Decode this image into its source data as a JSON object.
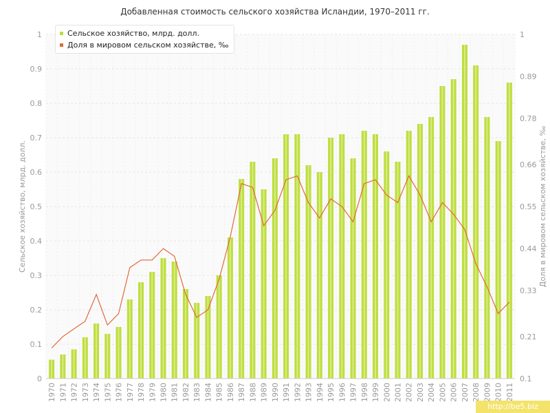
{
  "title": "Добавленная стоимость сельского хозяйства Исландии, 1970–2011 гг.",
  "watermark": "http://be5.biz",
  "colors": {
    "bar": "#bede3e",
    "bar_stripe": "#d8ec86",
    "line": "#e0683a",
    "grid": "#e6e6e6",
    "axis_text": "#999999"
  },
  "chart_data": {
    "type": "bar",
    "categories": [
      "1970",
      "1971",
      "1972",
      "1973",
      "1974",
      "1975",
      "1976",
      "1977",
      "1978",
      "1979",
      "1980",
      "1981",
      "1982",
      "1983",
      "1984",
      "1985",
      "1986",
      "1987",
      "1988",
      "1989",
      "1990",
      "1991",
      "1992",
      "1993",
      "1994",
      "1995",
      "1996",
      "1997",
      "1998",
      "1999",
      "2000",
      "2001",
      "2002",
      "2003",
      "2004",
      "2005",
      "2006",
      "2007",
      "2008",
      "2009",
      "2010",
      "2011"
    ],
    "series": [
      {
        "name": "Сельское хозяйство, млрд. долл.",
        "type": "bar",
        "axis": "left",
        "values": [
          0.055,
          0.07,
          0.085,
          0.12,
          0.16,
          0.13,
          0.15,
          0.23,
          0.28,
          0.31,
          0.35,
          0.34,
          0.26,
          0.22,
          0.24,
          0.3,
          0.41,
          0.58,
          0.63,
          0.55,
          0.64,
          0.71,
          0.71,
          0.62,
          0.6,
          0.7,
          0.71,
          0.64,
          0.72,
          0.71,
          0.66,
          0.63,
          0.72,
          0.74,
          0.76,
          0.85,
          0.87,
          0.97,
          0.91,
          0.76,
          0.69,
          0.86
        ]
      },
      {
        "name": "Доля в мировом сельском хозяйстве, ‰",
        "type": "line",
        "axis": "right",
        "values": [
          0.18,
          0.21,
          0.23,
          0.25,
          0.32,
          0.24,
          0.27,
          0.39,
          0.41,
          0.41,
          0.44,
          0.42,
          0.32,
          0.26,
          0.28,
          0.36,
          0.47,
          0.61,
          0.6,
          0.5,
          0.54,
          0.62,
          0.63,
          0.56,
          0.52,
          0.57,
          0.55,
          0.51,
          0.61,
          0.62,
          0.58,
          0.56,
          0.63,
          0.58,
          0.51,
          0.56,
          0.53,
          0.49,
          0.4,
          0.34,
          0.27,
          0.3
        ]
      }
    ],
    "ylabel": "Сельское хозяйство, млрд. долл.",
    "y2label": "Доля в мировом сельском хозяйстве, ‰",
    "ylim": [
      0,
      1
    ],
    "y2lim": [
      0.1,
      1
    ],
    "yticks": [
      "0",
      "0.1",
      "0.2",
      "0.3",
      "0.4",
      "0.5",
      "0.6",
      "0.7",
      "0.8",
      "0.9",
      "1"
    ],
    "y2ticks": [
      {
        "value": 0.1,
        "label": "0.1"
      },
      {
        "value": 0.21,
        "label": "0.21"
      },
      {
        "value": 0.33,
        "label": "0.33"
      },
      {
        "value": 0.44,
        "label": "0.44"
      },
      {
        "value": 0.55,
        "label": "0.55"
      },
      {
        "value": 0.66,
        "label": "0.66"
      },
      {
        "value": 0.78,
        "label": "0.78"
      },
      {
        "value": 0.89,
        "label": "0.89"
      },
      {
        "value": 1.0,
        "label": "1"
      }
    ],
    "grid": true,
    "legend": "top-left"
  }
}
